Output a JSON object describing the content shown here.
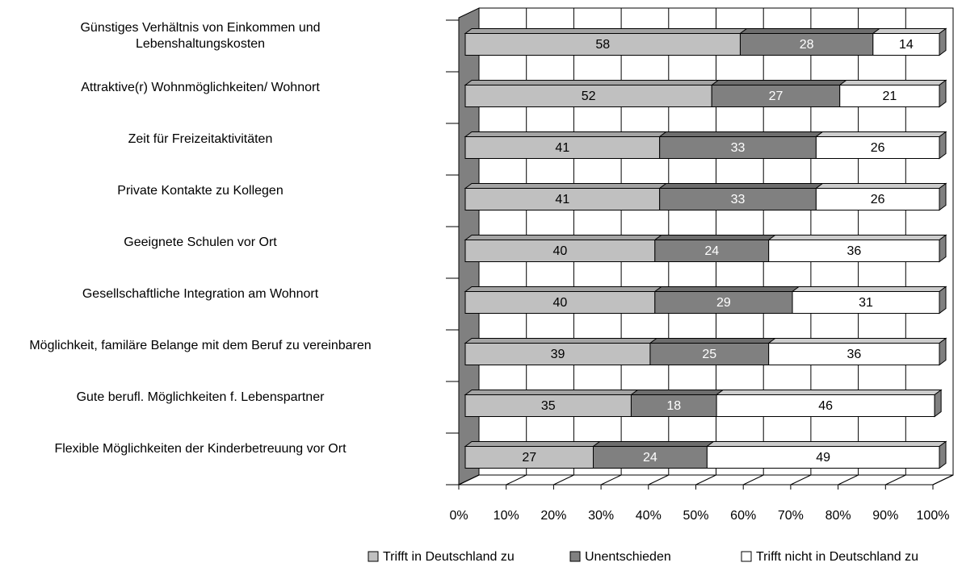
{
  "chart_data": {
    "type": "stacked_bar_3d",
    "orientation": "horizontal",
    "categories": [
      "Günstiges Verhältnis von Einkommen und\nLebenshaltungskosten",
      "Attraktive(r) Wohnmöglichkeiten/ Wohnort",
      "Zeit für Freizeitaktivitäten",
      "Private Kontakte zu Kollegen",
      "Geeignete Schulen vor Ort",
      "Gesellschaftliche Integration am Wohnort",
      "Möglichkeit, familäre Belange mit dem Beruf zu vereinbaren",
      "Gute berufl. Möglichkeiten f. Lebenspartner",
      "Flexible Möglichkeiten der Kinderbetreuung vor Ort"
    ],
    "series": [
      {
        "name": "Trifft in Deutschland zu",
        "color": "#c0c0c0",
        "values": [
          58,
          52,
          41,
          41,
          40,
          40,
          39,
          35,
          27
        ]
      },
      {
        "name": "Unentschieden",
        "color": "#808080",
        "values": [
          28,
          27,
          33,
          33,
          24,
          29,
          25,
          18,
          24
        ]
      },
      {
        "name": "Trifft nicht in Deutschland zu",
        "color": "#ffffff",
        "values": [
          14,
          21,
          26,
          26,
          36,
          31,
          36,
          46,
          49
        ]
      }
    ],
    "xlim": [
      0,
      100
    ],
    "xticks": [
      {
        "value": 0,
        "label": "0%"
      },
      {
        "value": 10,
        "label": "10%"
      },
      {
        "value": 20,
        "label": "20%"
      },
      {
        "value": 30,
        "label": "30%"
      },
      {
        "value": 40,
        "label": "40%"
      },
      {
        "value": 50,
        "label": "50%"
      },
      {
        "value": 60,
        "label": "60%"
      },
      {
        "value": 70,
        "label": "70%"
      },
      {
        "value": 80,
        "label": "80%"
      },
      {
        "value": 90,
        "label": "90%"
      },
      {
        "value": 100,
        "label": "100%"
      }
    ],
    "grid": true,
    "legend": "bottom"
  }
}
